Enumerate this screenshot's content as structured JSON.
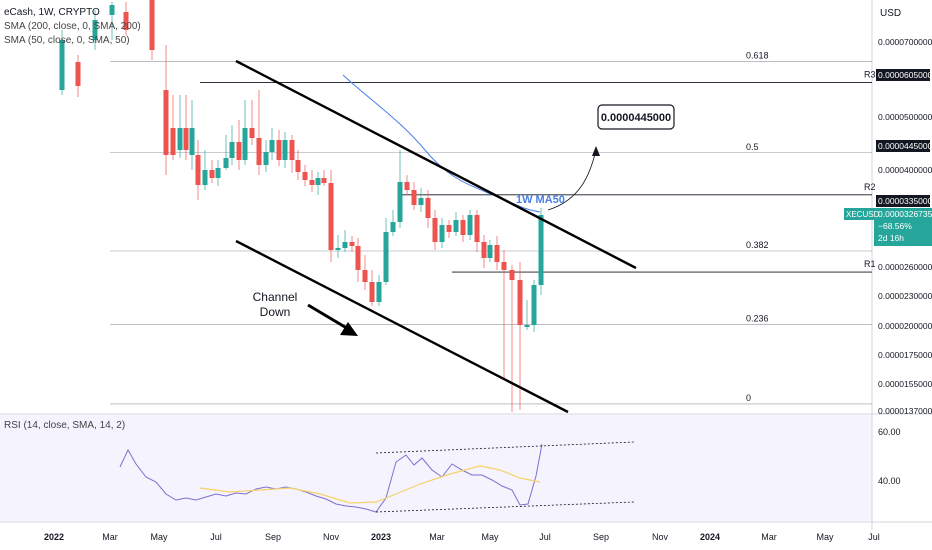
{
  "header": {
    "title": "eCash, 1W, CRYPTO",
    "sma200": "SMA (200, close, 0, SMA, 200)",
    "sma50": "SMA (50, close, 0, SMA, 50)",
    "currency": "USD"
  },
  "rsi_label": "RSI (14, close, SMA, 14, 2)",
  "ticker": {
    "symbol": "XECUSD",
    "price": "0.0000326735",
    "change": "−68.56%",
    "countdown": "2d 16h"
  },
  "annotations": {
    "target": "0.0000445000",
    "ma_label": "1W MA50",
    "channel": [
      "Channel",
      "Down"
    ]
  },
  "colors": {
    "up": "#26a69a",
    "down": "#ef5350",
    "ma50": "#4a7ee8",
    "rsi": "#7e6fcf",
    "rsi_ma": "#f5d26a",
    "rsi_band": "#ede9fb"
  },
  "chart_data": {
    "type": "line",
    "y_axis_ticks": [
      "0.0000700000",
      "0.0000605000",
      "0.0000500000",
      "0.0000445000",
      "0.0000400000",
      "0.0000335000",
      "0.0000326735",
      "0.0000260000",
      "0.0000230000",
      "0.0000200000",
      "0.0000175000",
      "0.0000155000",
      "0.0000137000"
    ],
    "x_axis_ticks": [
      "2022",
      "Mar",
      "May",
      "Jul",
      "Sep",
      "Nov",
      "2023",
      "Mar",
      "May",
      "Jul",
      "Sep",
      "Nov",
      "2024",
      "Mar",
      "May",
      "Jul"
    ],
    "fibonacci": [
      {
        "label": "0.618",
        "value": 6.35e-05
      },
      {
        "label": "0.5",
        "value": 5.05e-05
      },
      {
        "label": "0.382",
        "value": 3.65e-05
      },
      {
        "label": "0.236",
        "value": 2.6e-05
      },
      {
        "label": "0",
        "value": 1.47e-05
      }
    ],
    "resistance": [
      {
        "label": "R3",
        "value": 6.05e-05
      },
      {
        "label": "R2",
        "value": 4.45e-05
      },
      {
        "label": "R1",
        "value": 3.35e-05
      }
    ],
    "rsi_ticks": [
      "60.00",
      "40.00"
    ]
  }
}
